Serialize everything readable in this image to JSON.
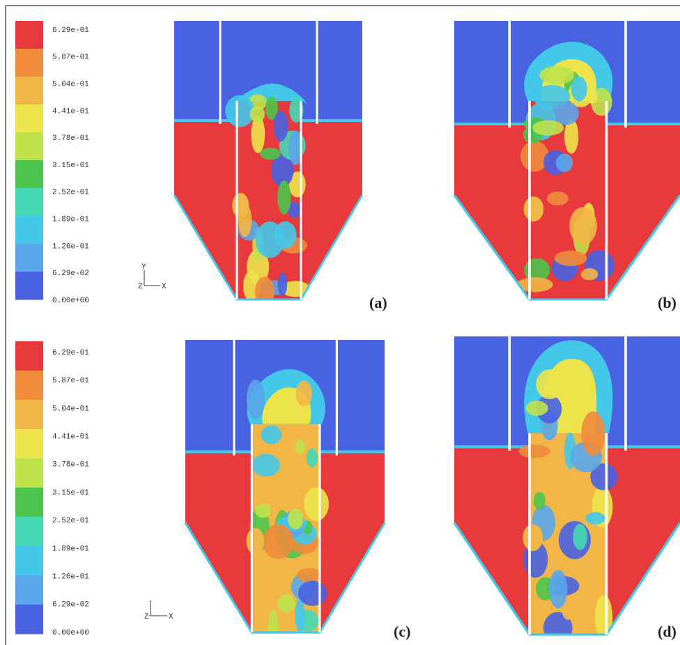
{
  "legends": [
    {
      "labels": [
        "6.29e-01",
        "5.87e-01",
        "5.04e-01",
        "4.41e-01",
        "3.78e-01",
        "3.15e-01",
        "2.52e-01",
        "1.89e-01",
        "1.26e-01",
        "6.29e-02",
        "0.00e+00"
      ],
      "colors": [
        "#e8393c",
        "#f08c3c",
        "#f2b646",
        "#ece44a",
        "#bfe24a",
        "#4cc54c",
        "#44d8b4",
        "#44c8ea",
        "#5aa6ea",
        "#4862e2"
      ]
    },
    {
      "labels": [
        "6.29e-01",
        "5.87e-01",
        "5.04e-01",
        "4.41e-01",
        "3.78e-01",
        "3.15e-01",
        "2.52e-01",
        "1.89e-01",
        "1.26e-01",
        "6.29e-02",
        "0.00e+00"
      ],
      "colors": [
        "#e8393c",
        "#f08c3c",
        "#f2b646",
        "#ece44a",
        "#bfe24a",
        "#4cc54c",
        "#44d8b4",
        "#44c8ea",
        "#5aa6ea",
        "#4862e2"
      ]
    }
  ],
  "panels": [
    {
      "label": "(a)"
    },
    {
      "label": "(b)"
    },
    {
      "label": "(c)"
    },
    {
      "label": "(d)"
    }
  ],
  "triads": [
    {
      "y": "Y",
      "z": "Z",
      "x": "X"
    },
    {
      "z": "Z",
      "x": "X"
    }
  ]
}
